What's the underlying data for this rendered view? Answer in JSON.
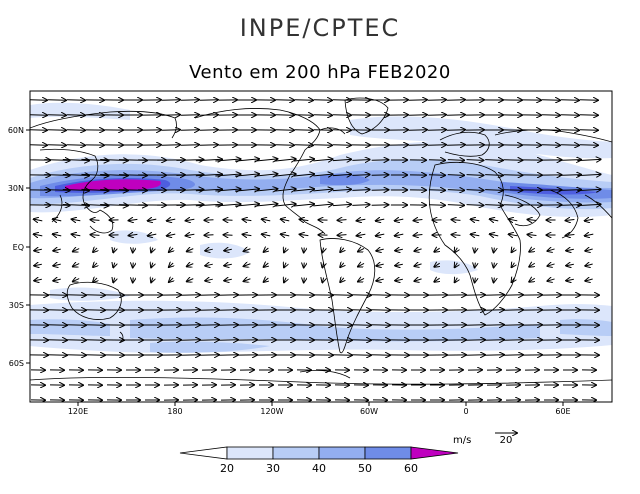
{
  "header": {
    "suptitle": "INPE/CPTEC",
    "title": "Vento em 200 hPa FEB2020"
  },
  "map": {
    "lon_ticks": [
      "120E",
      "180",
      "120W",
      "60W",
      "0",
      "60E"
    ],
    "lat_ticks": [
      "60N",
      "30N",
      "EQ",
      "30S",
      "60S"
    ],
    "projection": "lat-lon, 60E..(wrap)..90E",
    "vector_field": "wind vectors"
  },
  "colorbar": {
    "unit": "m/s",
    "levels": [
      "20",
      "30",
      "40",
      "50",
      "60"
    ],
    "colors": [
      "#ffffff",
      "#dce6fb",
      "#b8cdf6",
      "#93aef0",
      "#6f8ce8",
      "#4e5ee0",
      "#bf00bf"
    ]
  },
  "reference_vector": {
    "unit": "m/s",
    "value": "20"
  }
}
